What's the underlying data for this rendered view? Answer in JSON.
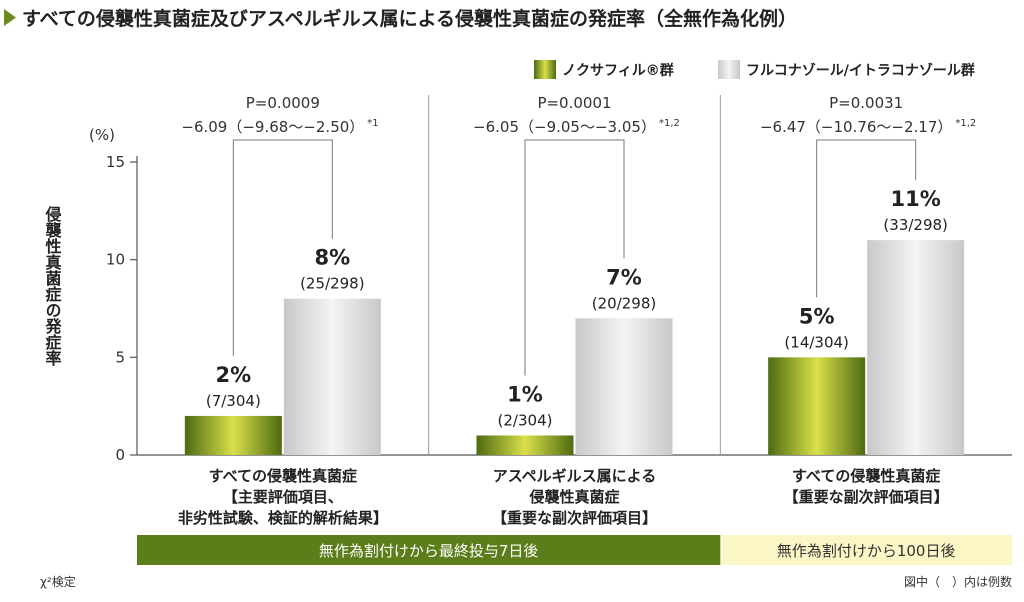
{
  "title": "すべての侵襲性真菌症及びアスペルギルス属による侵襲性真菌症の発症率（全無作為化例）",
  "legend": [
    "ノクサフィル®群",
    "フルコナゾール/イトラコナゾール群"
  ],
  "y_unit": "(%)",
  "y_axis_label": "侵襲性真菌症の発症率",
  "footnote_left": "χ²検定",
  "footnote_right": "図中（　）内は例数",
  "colors": {
    "accent": "#6b8c1c",
    "bar_green_light": "#d9e04a",
    "bar_green_dark": "#4e6a12",
    "bar_gray_light": "#f4f4f4",
    "bar_gray_dark": "#c8c8c8",
    "band_green": "#5b7d1a",
    "band_yellow": "#fbf6c6"
  },
  "chart_data": {
    "type": "bar",
    "ylim": [
      0,
      15
    ],
    "yticks": [
      0,
      5,
      10,
      15
    ],
    "series": [
      {
        "name": "ノクサフィル®群",
        "values": [
          2,
          1,
          5
        ],
        "labels": [
          "2%",
          "1%",
          "5%"
        ],
        "counts": [
          "(7/304)",
          "(2/304)",
          "(14/304)"
        ]
      },
      {
        "name": "フルコナゾール/イトラコナゾール群",
        "values": [
          8,
          7,
          11
        ],
        "labels": [
          "8%",
          "7%",
          "11%"
        ],
        "counts": [
          "(25/298)",
          "(20/298)",
          "(33/298)"
        ]
      }
    ],
    "groups": [
      {
        "category_lines": [
          "すべての侵襲性真菌症",
          "【主要評価項目、",
          "非劣性試験、検証的解析結果】"
        ],
        "p_value": "P=0.0009",
        "difference": "−6.09（−9.68〜−2.50）",
        "note": "*1"
      },
      {
        "category_lines": [
          "アスペルギルス属による",
          "侵襲性真菌症",
          "【重要な副次評価項目】"
        ],
        "p_value": "P=0.0001",
        "difference": "−6.05（−9.05〜−3.05）",
        "note": "*1,2"
      },
      {
        "category_lines": [
          "すべての侵襲性真菌症",
          "【重要な副次評価項目】"
        ],
        "p_value": "P=0.0031",
        "difference": "−6.47（−10.76〜−2.17）",
        "note": "*1,2"
      }
    ],
    "periods": [
      {
        "label": "無作為割付けから最終投与7日後",
        "groups": [
          0,
          1
        ]
      },
      {
        "label": "無作為割付けから100日後",
        "groups": [
          2
        ]
      }
    ]
  }
}
